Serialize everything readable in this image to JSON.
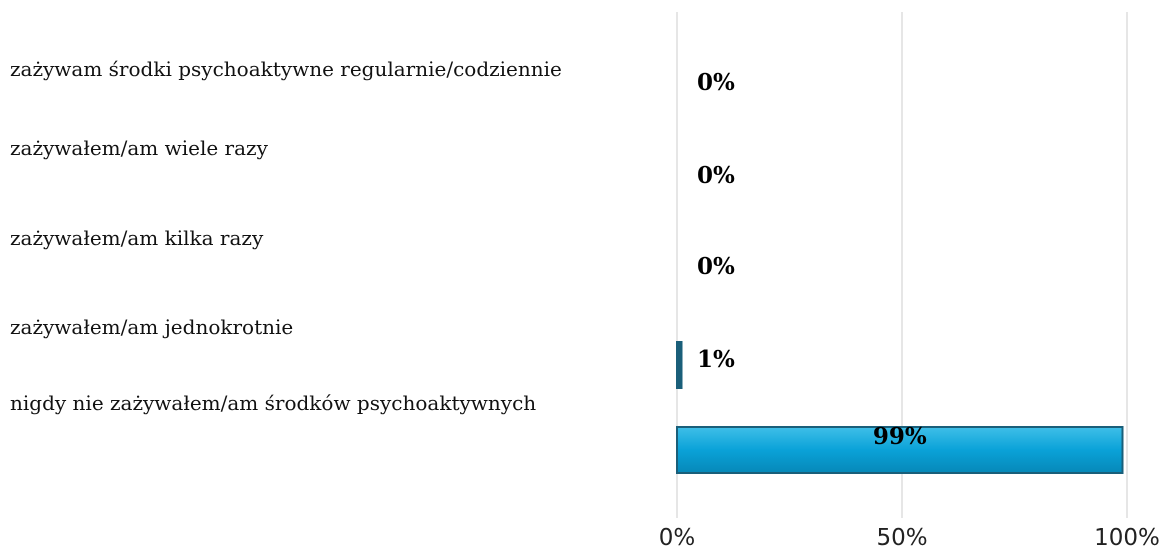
{
  "chart_data": {
    "type": "bar",
    "orientation": "horizontal",
    "title": "",
    "categories": [
      "zażywam środki psychoaktywne regularnie/codziennie",
      "zażywałem/am wiele razy",
      "zażywałem/am kilka razy",
      "zażywałem/am jednokrotnie",
      "nigdy nie zażywałem/am środków psychoaktywnych"
    ],
    "values": [
      0,
      0,
      0,
      1,
      99
    ],
    "value_labels": [
      "0%",
      "0%",
      "0%",
      "1%",
      "99%"
    ],
    "xlim": [
      0,
      100
    ],
    "x_ticks": [
      0,
      50,
      100
    ],
    "x_tick_labels": [
      "0%",
      "50%",
      "100%"
    ],
    "xlabel": "",
    "ylabel": "",
    "grid": true,
    "legend": "none",
    "bar_color": "#0099cc",
    "bar_edge_color": "#1a5f7a"
  }
}
